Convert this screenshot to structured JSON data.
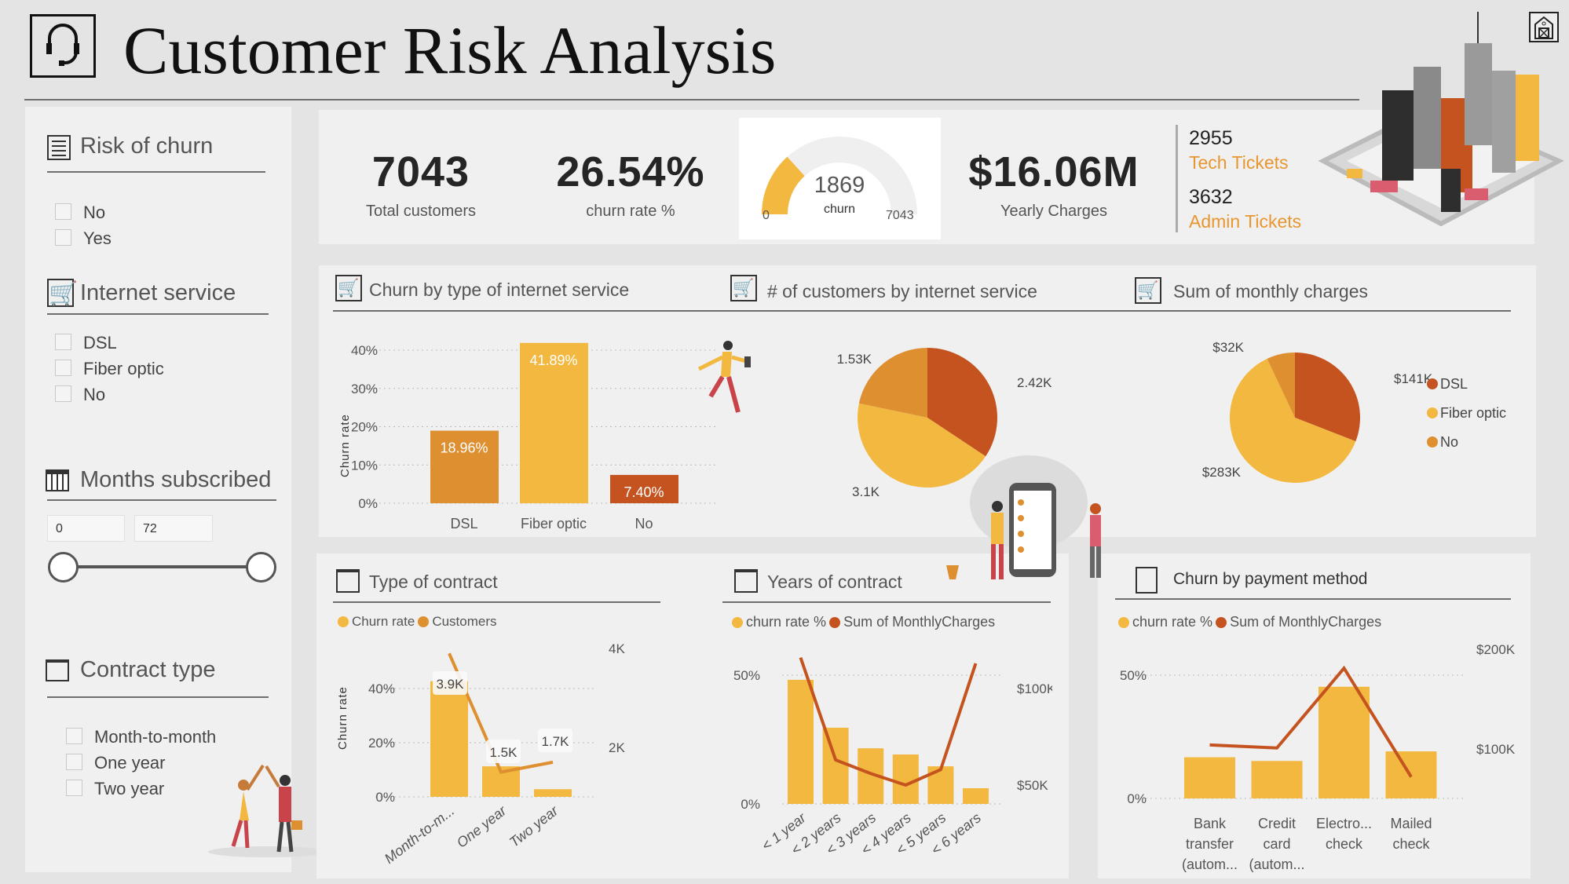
{
  "header": {
    "title": "Customer Risk Analysis",
    "icon": "headset-icon",
    "home_icon": "home-icon"
  },
  "colors": {
    "dsl": "#C4531F",
    "fiber": "#F2B840",
    "no": "#DE8F30",
    "ticket": "#E8962F",
    "line_red": "#C4531F"
  },
  "slicers": {
    "risk": {
      "title": "Risk of churn",
      "icon": "notes-icon",
      "items": [
        "No",
        "Yes"
      ]
    },
    "internet": {
      "title": "Internet service",
      "icon": "cart-icon",
      "items": [
        "DSL",
        "Fiber optic",
        "No"
      ]
    },
    "months": {
      "title": "Months subscribed",
      "icon": "calendar-icon",
      "min": "0",
      "max": "72",
      "range": [
        0,
        72
      ]
    },
    "contract": {
      "title": "Contract type",
      "icon": "folder-icon",
      "items": [
        "Month-to-month",
        "One year",
        "Two year"
      ]
    }
  },
  "kpis": {
    "total_customers": {
      "value": "7043",
      "label": "Total customers"
    },
    "churn_rate": {
      "value": "26.54%",
      "label": "churn rate %"
    },
    "gauge": {
      "value": 1869,
      "value_label": "1869",
      "label": "churn",
      "min": "0",
      "max": "7043",
      "max_value": 7043
    },
    "yearly_charges": {
      "value": "$16.06M",
      "label": "Yearly Charges"
    },
    "tech_tickets": {
      "value": "2955",
      "label": "Tech Tickets"
    },
    "admin_tickets": {
      "value": "3632",
      "label": "Admin Tickets"
    }
  },
  "sections": {
    "churn_internet": "Churn by type of internet service",
    "customers_internet": "# of customers by internet service",
    "monthly_charges": "Sum of monthly charges",
    "type_contract": "Type of contract",
    "years_contract": "Years of contract",
    "payment": "Churn by payment method"
  },
  "chart_data": [
    {
      "type": "bar",
      "title": "Churn by type of internet service",
      "ylabel": "Churn rate",
      "categories": [
        "DSL",
        "Fiber optic",
        "No"
      ],
      "values": [
        18.96,
        41.89,
        7.4
      ],
      "data_labels": [
        "18.96%",
        "41.89%",
        "7.40%"
      ],
      "ylim": [
        0,
        40
      ],
      "yticks": [
        "0%",
        "10%",
        "20%",
        "30%",
        "40%"
      ],
      "grid": true
    },
    {
      "type": "pie",
      "title": "# of customers by internet service",
      "categories": [
        "DSL",
        "Fiber optic",
        "No"
      ],
      "values": [
        2420,
        3100,
        1530
      ],
      "data_labels": [
        "2.42K",
        "3.1K",
        "1.53K"
      ]
    },
    {
      "type": "pie",
      "title": "Sum of monthly charges",
      "categories": [
        "DSL",
        "Fiber optic",
        "No"
      ],
      "values": [
        141,
        283,
        32
      ],
      "data_labels": [
        "$141K",
        "$283K",
        "$32K"
      ],
      "legend": [
        "DSL",
        "Fiber optic",
        "No"
      ],
      "legend_position": "right"
    },
    {
      "type": "bar+line",
      "title": "Type of contract",
      "ylabel": "Churn rate",
      "categories": [
        "Month-to-m...",
        "One year",
        "Two year"
      ],
      "series": [
        {
          "name": "Churn rate",
          "type": "bar",
          "values": [
            42.71,
            11.27,
            2.83
          ]
        },
        {
          "name": "Customers",
          "type": "line",
          "values": [
            3900,
            1500,
            1700
          ],
          "data_labels": [
            "3.9K",
            "1.5K",
            "1.7K"
          ]
        }
      ],
      "yticks": [
        "0%",
        "20%",
        "40%"
      ],
      "y2ticks": [
        "2K",
        "4K"
      ],
      "grid": true
    },
    {
      "type": "bar+line",
      "title": "Years of contract",
      "categories": [
        "< 1 year",
        "< 2 years",
        "< 3 years",
        "< 4 years",
        "< 5 years",
        "< 6 years"
      ],
      "series": [
        {
          "name": "churn rate %",
          "type": "bar",
          "values": [
            48.2,
            29.6,
            21.6,
            19.2,
            14.6,
            6.1
          ]
        },
        {
          "name": "Sum of MonthlyCharges",
          "type": "line",
          "values": [
            116000,
            63000,
            56000,
            50000,
            58000,
            113000
          ]
        }
      ],
      "yticks": [
        "0%",
        "50%"
      ],
      "y2ticks": [
        "$50K",
        "$100K"
      ],
      "grid": true
    },
    {
      "type": "bar+line",
      "title": "Churn by payment method",
      "categories": [
        [
          "Bank",
          "transfer",
          "(autom..."
        ],
        [
          "Credit",
          "card",
          "(autom..."
        ],
        [
          "Electro...",
          "check"
        ],
        [
          "Mailed",
          "check"
        ]
      ],
      "series": [
        {
          "name": "churn rate %",
          "type": "bar",
          "values": [
            16.7,
            15.2,
            45.3,
            19.1
          ]
        },
        {
          "name": "Sum of MonthlyCharges",
          "type": "line",
          "values": [
            104000,
            101000,
            181000,
            72000
          ]
        }
      ],
      "yticks": [
        "0%",
        "50%"
      ],
      "y2ticks": [
        "$100K",
        "$200K"
      ],
      "grid": true
    }
  ]
}
